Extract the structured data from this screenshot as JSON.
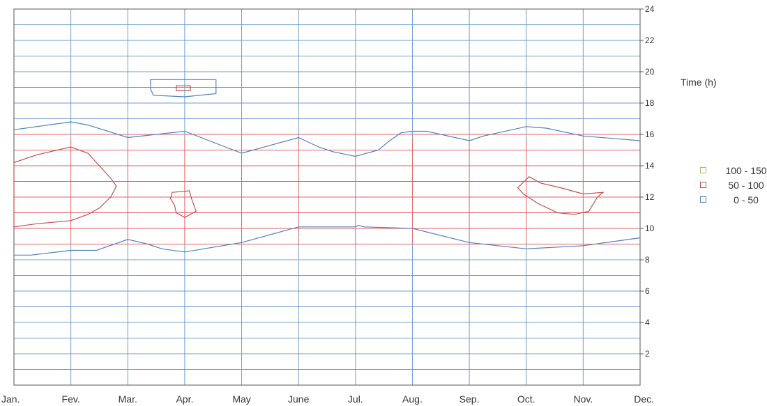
{
  "chart_data": {
    "type": "contour",
    "ylabel": "Time (h)",
    "x_categories": [
      "Jan.",
      "Fev.",
      "Mar.",
      "Apr.",
      "May",
      "June",
      "Jul.",
      "Aug.",
      "Sep.",
      "Oct.",
      "Nov.",
      "Dec."
    ],
    "ylim": [
      0,
      24
    ],
    "y_ticks": [
      2,
      4,
      6,
      8,
      10,
      12,
      14,
      16,
      18,
      20,
      22,
      24
    ],
    "grid": true,
    "legend_position": "right",
    "legend": [
      {
        "label": "100 - 150",
        "color": "#a6c15a"
      },
      {
        "label": "50 - 100",
        "color": "#c0504d"
      },
      {
        "label": "0 - 50",
        "color": "#4f81bd"
      }
    ],
    "colors": {
      "level_0_50": "#4f81bd",
      "level_50_100": "#c0504d",
      "level_100_150": "#a6c15a",
      "grid": "#6f9ccc",
      "grid_red": "#e06060"
    },
    "contours": [
      {
        "level": "0 - 50",
        "name": "upper-boundary",
        "points": [
          [
            0,
            16.3
          ],
          [
            1,
            16.8
          ],
          [
            1.3,
            16.6
          ],
          [
            2,
            15.8
          ],
          [
            3,
            16.2
          ],
          [
            4,
            14.8
          ],
          [
            5,
            15.8
          ],
          [
            5.35,
            15.2
          ],
          [
            5.6,
            14.9
          ],
          [
            6,
            14.6
          ],
          [
            6.4,
            15.0
          ],
          [
            6.6,
            15.6
          ],
          [
            6.8,
            16.1
          ],
          [
            7,
            16.2
          ],
          [
            7.25,
            16.2
          ],
          [
            8,
            15.6
          ],
          [
            8.25,
            15.9
          ],
          [
            9,
            16.5
          ],
          [
            9.35,
            16.4
          ],
          [
            10,
            15.9
          ],
          [
            11,
            15.6
          ]
        ]
      },
      {
        "level": "0 - 50",
        "name": "lower-boundary",
        "points": [
          [
            0,
            8.3
          ],
          [
            0.3,
            8.3
          ],
          [
            1,
            8.6
          ],
          [
            1.45,
            8.6
          ],
          [
            2,
            9.3
          ],
          [
            2.35,
            9.0
          ],
          [
            2.6,
            8.7
          ],
          [
            3,
            8.5
          ],
          [
            4,
            9.1
          ],
          [
            5,
            10.1
          ],
          [
            6,
            10.1
          ],
          [
            6.05,
            10.2
          ],
          [
            6.15,
            10.1
          ],
          [
            7,
            10.0
          ],
          [
            8,
            9.1
          ],
          [
            9,
            8.7
          ],
          [
            10,
            8.9
          ],
          [
            11,
            9.4
          ]
        ]
      },
      {
        "level": "0 - 50",
        "name": "evening-island",
        "closed": true,
        "points": [
          [
            2.4,
            19.5
          ],
          [
            3.55,
            19.5
          ],
          [
            3.55,
            18.6
          ],
          [
            3.0,
            18.4
          ],
          [
            2.45,
            18.5
          ],
          [
            2.4,
            18.9
          ]
        ]
      },
      {
        "level": "50 - 100",
        "name": "evening-island-inner",
        "closed": true,
        "points": [
          [
            2.85,
            19.1
          ],
          [
            3.1,
            19.1
          ],
          [
            3.1,
            18.8
          ],
          [
            2.85,
            18.8
          ]
        ]
      },
      {
        "level": "50 - 100",
        "name": "january-region",
        "closed": true,
        "points": [
          [
            0,
            14.2
          ],
          [
            0.4,
            14.7
          ],
          [
            1,
            15.2
          ],
          [
            1.3,
            14.8
          ],
          [
            1.5,
            14.0
          ],
          [
            1.7,
            13.2
          ],
          [
            1.8,
            12.7
          ],
          [
            1.7,
            12.0
          ],
          [
            1.5,
            11.3
          ],
          [
            1.3,
            10.9
          ],
          [
            1,
            10.5
          ],
          [
            0.4,
            10.3
          ],
          [
            0,
            10.1
          ]
        ]
      },
      {
        "level": "50 - 100",
        "name": "april-region",
        "closed": true,
        "points": [
          [
            2.78,
            12.3
          ],
          [
            3.08,
            12.4
          ],
          [
            3.12,
            11.9
          ],
          [
            3.2,
            11.1
          ],
          [
            3.0,
            10.7
          ],
          [
            2.85,
            11.0
          ],
          [
            2.82,
            11.5
          ],
          [
            2.75,
            11.9
          ]
        ]
      },
      {
        "level": "50 - 100",
        "name": "october-region",
        "closed": true,
        "points": [
          [
            8.85,
            12.6
          ],
          [
            9.05,
            13.3
          ],
          [
            9.25,
            12.9
          ],
          [
            9.6,
            12.6
          ],
          [
            10,
            12.2
          ],
          [
            10.35,
            12.3
          ],
          [
            10.25,
            12.0
          ],
          [
            10.1,
            11.1
          ],
          [
            9.85,
            10.9
          ],
          [
            9.55,
            11.0
          ],
          [
            9.2,
            11.6
          ],
          [
            8.95,
            12.2
          ]
        ]
      }
    ]
  }
}
